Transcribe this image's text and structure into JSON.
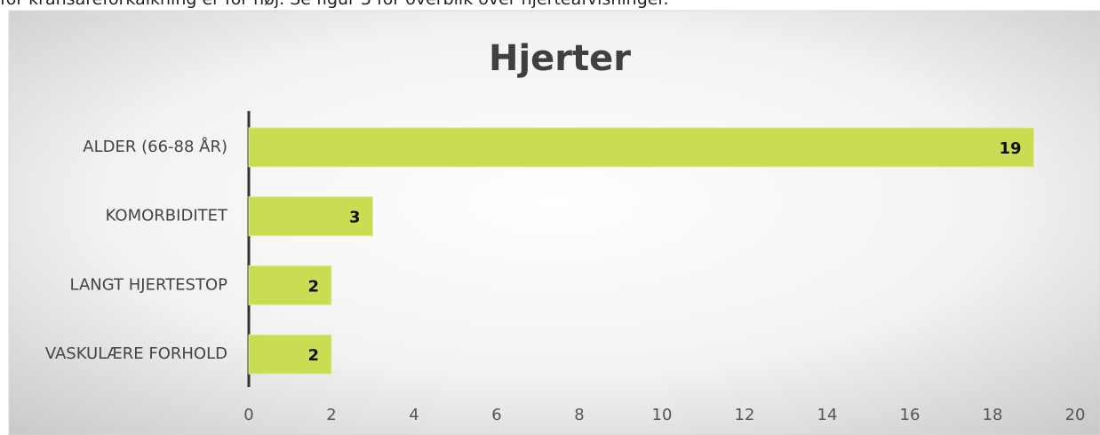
{
  "body_text": "for kransåreforkalkning er for høj. Se figur 3 for overblik over hjerteafvisninger.",
  "chart_data": {
    "type": "bar",
    "orientation": "horizontal",
    "title": "Hjerter",
    "categories": [
      "ALDER (66-88 ÅR)",
      "KOMORBIDITET",
      "LANGT HJERTESTOP",
      "VASKULÆRE FORHOLD"
    ],
    "values": [
      19,
      3,
      2,
      2
    ],
    "color": "#c9dc52",
    "xlim": [
      0,
      20
    ],
    "xticks": [
      0,
      2,
      4,
      6,
      8,
      10,
      12,
      14,
      16,
      18,
      20
    ],
    "grid": true
  }
}
